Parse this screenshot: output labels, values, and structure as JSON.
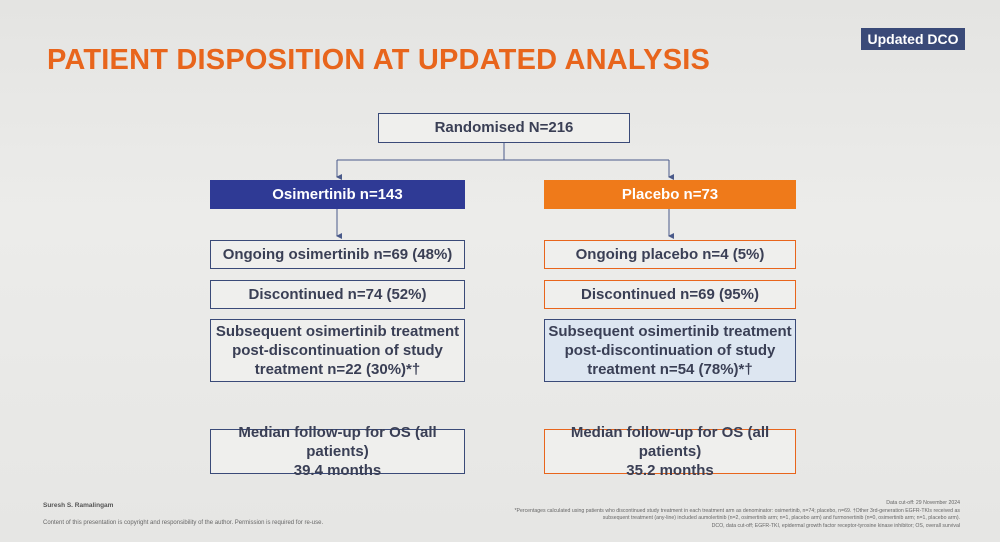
{
  "badge": "Updated DCO",
  "title": "PATIENT DISPOSITION AT UPDATED ANALYSIS",
  "randomised": "Randomised N=216",
  "left": {
    "header": "Osimertinib n=143",
    "ongoing": "Ongoing osimertinib n=69 (48%)",
    "discontinued": "Discontinued n=74 (52%)",
    "subsequent_l1": "Subsequent osimertinib treatment",
    "subsequent_l2": "post-discontinuation of study",
    "subsequent_l3": "treatment n=22 (30%)*†",
    "followup_l1": "Median follow-up for OS (all patients)",
    "followup_l2": "39.4 months"
  },
  "right": {
    "header": "Placebo n=73",
    "ongoing": "Ongoing placebo n=4 (5%)",
    "discontinued": "Discontinued n=69 (95%)",
    "subsequent_l1": "Subsequent osimertinib treatment",
    "subsequent_l2": "post-discontinuation of study",
    "subsequent_l3": "treatment n=54 (78%)*†",
    "followup_l1": "Median follow-up for OS (all patients)",
    "followup_l2": "35.2 months"
  },
  "footer": {
    "author": "Suresh S. Ramalingam",
    "copyright": "Content of this presentation is copyright and responsibility of the author. Permission is required for re-use.",
    "note1": "Data cut-off: 29 November 2024",
    "note2": "*Percentages calculated using patients who discontinued study treatment in each treatment arm as denominator: osimertinib, n=74; placebo, n=69. †Other 3rd-generation EGFR-TKIs received as",
    "note3": "subsequent treatment (any-line) included aumolertinib (n=2, osimertinib arm; n=1, placebo arm) and furmonertinib (n=0, osimertinib arm; n=1, placebo arm).",
    "note4": "DCO, data cut-off; EGFR-TKI, epidermal growth factor receptor-tyrosine kinase inhibitor; OS, overall survival"
  }
}
